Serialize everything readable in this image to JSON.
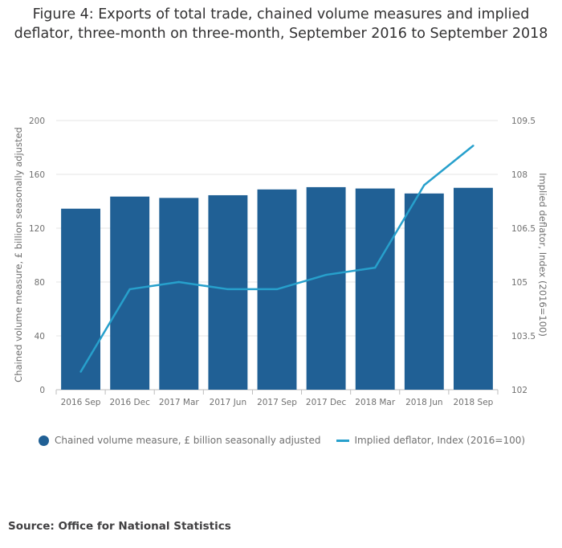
{
  "title": {
    "line1": "Figure 4: Exports of total trade, chained volume measures and implied",
    "line2": "deflator, three-month on three-month, September 2016 to September 2018"
  },
  "legend": {
    "bars": "Chained volume measure, £ billion seasonally adjusted",
    "line": "Implied deflator, Index (2016=100)"
  },
  "source": "Source: Office for National Statistics",
  "colors": {
    "bar": "#206095",
    "line": "#27a0cc",
    "grid": "#e6e6e6"
  },
  "chart_data": {
    "type": "bar",
    "title": "Figure 4: Exports of total trade, chained volume measures and implied deflator, three-month on three-month, September 2016 to September 2018",
    "categories": [
      "2016 Sep",
      "2016 Dec",
      "2017 Mar",
      "2017 Jun",
      "2017 Sep",
      "2017 Dec",
      "2018 Mar",
      "2018 Jun",
      "2018 Sep"
    ],
    "series": [
      {
        "name": "Chained volume measure, £ billion seasonally adjusted",
        "type": "bar",
        "axis": "left",
        "values": [
          134.5,
          143.5,
          142.5,
          144.5,
          148.8,
          150.5,
          149.5,
          145.8,
          150.0
        ]
      },
      {
        "name": "Implied deflator, Index (2016=100)",
        "type": "line",
        "axis": "right",
        "values": [
          102.5,
          104.8,
          105.0,
          104.8,
          104.8,
          105.2,
          105.4,
          107.7,
          108.8
        ]
      }
    ],
    "ylabel": "Chained volume measure, £ billion seasonally adjusted",
    "ylabel_right": "Implied deflator, Index (2016=100)",
    "ylim": [
      0,
      200
    ],
    "ylim_right": [
      102,
      109.5
    ],
    "yticks": [
      "0",
      "40",
      "80",
      "120",
      "160",
      "200"
    ],
    "yticks_right": [
      "102",
      "103.5",
      "105",
      "106.5",
      "108",
      "109.5"
    ],
    "grid": true,
    "legend_position": "bottom-left"
  }
}
